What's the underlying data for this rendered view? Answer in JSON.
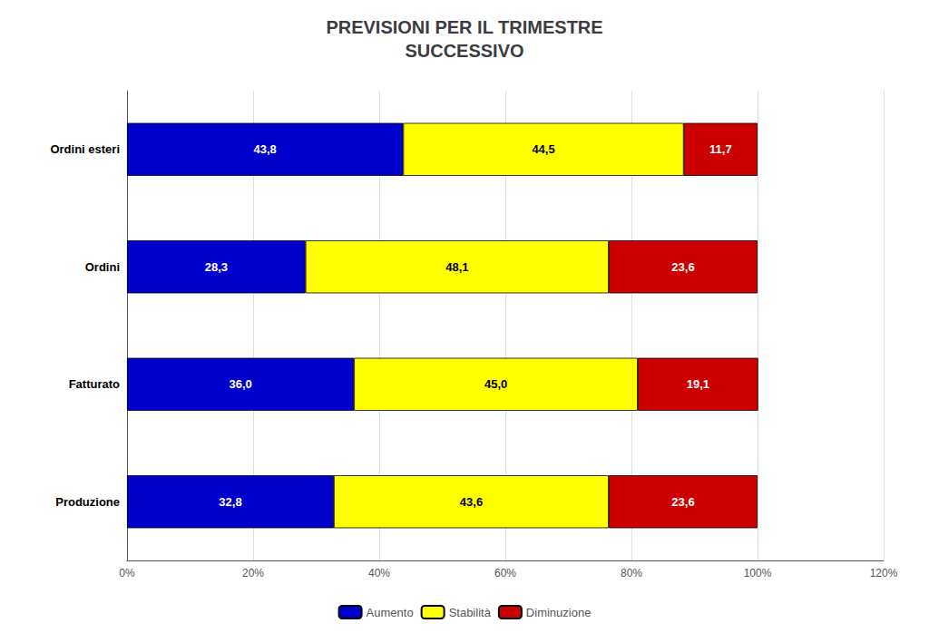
{
  "chart_data": {
    "type": "bar",
    "orientation": "horizontal",
    "stacked": true,
    "title": "PREVISIONI PER IL TRIMESTRE\nSUCCESSIVO",
    "categories": [
      "Produzione",
      "Fatturato",
      "Ordini",
      "Ordini esteri"
    ],
    "series": [
      {
        "name": "Aumento",
        "color": "#0000CC",
        "values": [
          32.8,
          36.0,
          28.3,
          43.8
        ],
        "value_labels": [
          "32,8",
          "36,0",
          "28,3",
          "43,8"
        ]
      },
      {
        "name": "Stabilità",
        "color": "#FFFF00",
        "values": [
          43.6,
          45.0,
          48.1,
          44.5
        ],
        "value_labels": [
          "43,6",
          "45,0",
          "48,1",
          "44,5"
        ]
      },
      {
        "name": "Diminuzione",
        "color": "#CC0000",
        "values": [
          23.6,
          19.1,
          23.6,
          11.7
        ],
        "value_labels": [
          "23,6",
          "19,1",
          "23,6",
          "11,7"
        ]
      }
    ],
    "xlim": [
      0,
      120
    ],
    "xticks": [
      {
        "value": 0,
        "label": "0%"
      },
      {
        "value": 20,
        "label": "20%"
      },
      {
        "value": 40,
        "label": "40%"
      },
      {
        "value": 60,
        "label": "60%"
      },
      {
        "value": 80,
        "label": "80%"
      },
      {
        "value": 100,
        "label": "100%"
      },
      {
        "value": 120,
        "label": "120%"
      }
    ],
    "grid": true,
    "data_labels": true,
    "legend": "bottom"
  }
}
